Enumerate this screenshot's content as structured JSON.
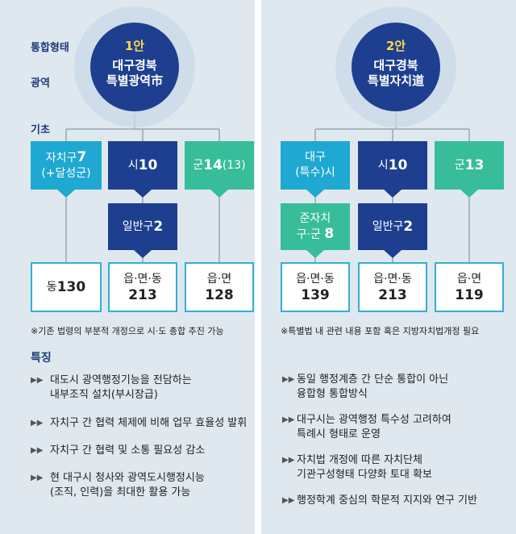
{
  "left": {
    "labels": {
      "tier1": "통합형태",
      "tier2": "광역",
      "tier3": "기초"
    },
    "circle": {
      "num": "1안",
      "line1": "대구경북",
      "line2": "특별광역市"
    },
    "b1": {
      "text": "자치구",
      "num": "7",
      "line2": "(+달성군)"
    },
    "b2": {
      "text": "시",
      "num": "10"
    },
    "b3": {
      "text": "군",
      "num": "14",
      "paren": "(13)"
    },
    "mid": {
      "text": "일반구",
      "num": "2"
    },
    "o1": {
      "text": "동",
      "num": "130"
    },
    "o2": {
      "line1": "읍·면·동",
      "num": "213"
    },
    "o3": {
      "line1": "읍·면",
      "num": "128"
    },
    "note": "※기존 법령의 부분적 개정으로 시·도 총합 추진 가능",
    "features_title": "특징",
    "features": [
      {
        "mark": "▶▶",
        "l1": "대도시 광역행정기능을 전담하는",
        "l2": "내부조직 설치(부시장급)"
      },
      {
        "mark": "▶▶",
        "l1": "자치구 간 협력 체제에 비해 업무 효율성 발휘",
        "l2": ""
      },
      {
        "mark": "▶▶",
        "l1": "자치구 간 협력 및 소통 필요성 감소",
        "l2": ""
      },
      {
        "mark": "▶▶",
        "l1": "현 대구시 청사와 광역도시행정시능",
        "l2": "(조직, 인력)을 최대한 활용 가능"
      }
    ]
  },
  "right": {
    "circle": {
      "num": "2안",
      "line1": "대구경북",
      "line2": "특별자치道"
    },
    "b1": {
      "line1": "대구",
      "line2": "(특수)시"
    },
    "b2": {
      "text": "시",
      "num": "10"
    },
    "b3": {
      "text": "군",
      "num": "13"
    },
    "mid1": {
      "line1": "준자치",
      "text": "구·군",
      "num": "8"
    },
    "mid2": {
      "text": "일반구",
      "num": "2"
    },
    "o1": {
      "line1": "읍·면·동",
      "num": "139"
    },
    "o2": {
      "line1": "읍·면·동",
      "num": "213"
    },
    "o3": {
      "line1": "읍·면",
      "num": "119"
    },
    "note": "※특별법 내 관련 내용 포함 혹은 지방자치법개정 필요",
    "features": [
      {
        "mark": "▶▶",
        "l1": "동일 행정계층 간 단순 통합이 아닌",
        "l2": "융합형 통합방식"
      },
      {
        "mark": "▶▶",
        "l1": "대구시는 광역행정 특수성 고려하여",
        "l2": "특례시 형태로 운영"
      },
      {
        "mark": "▶▶",
        "l1": "자치법 개정에 따른 자치단체",
        "l2": "기관구성형태 다양화 토대 확보"
      },
      {
        "mark": "▶▶",
        "l1": "행정학계 중심의 학문적 지지와 연구 기반",
        "l2": ""
      }
    ]
  },
  "colors": {
    "navy": "#1e3f8f",
    "cyan": "#1fa8d2",
    "green": "#37bd9a",
    "panel": "#dfe8ef",
    "gold": "#ffd84a"
  }
}
